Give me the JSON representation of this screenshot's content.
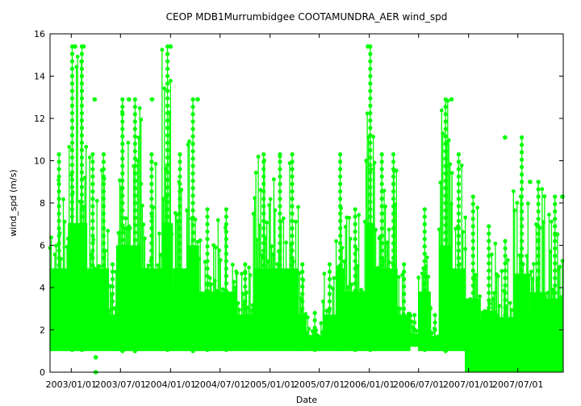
{
  "chart_data": {
    "type": "scatter",
    "title": "CEOP MDB1Murrumbidgee COOTAMUNDRA_AER  wind_spd",
    "xlabel": "Date",
    "ylabel": "wind_spd (m/s)",
    "x_range": [
      "2002-10-15",
      "2007-12-15"
    ],
    "ylim": [
      0,
      16
    ],
    "y_ticks": [
      0,
      2,
      4,
      6,
      8,
      10,
      12,
      14,
      16
    ],
    "x_ticks": [
      "2003/01/01",
      "2003/07/01",
      "2004/01/01",
      "2004/07/01",
      "2005/01/01",
      "2005/07/01",
      "2006/01/01",
      "2006/07/01",
      "2007/01/01",
      "2007/07/01"
    ],
    "grid": false,
    "legend": "none",
    "series_color": "#00ff00",
    "series": [
      {
        "columns": [
          "start_date",
          "end_date",
          "low",
          "high"
        ],
        "ranges": [
          [
            "2002-10-15",
            "2002-12-20",
            1.0,
            10.3
          ],
          [
            "2002-12-20",
            "2003-01-20",
            1.0,
            15.4
          ],
          [
            "2003-01-20",
            "2003-03-01",
            1.0,
            15.4
          ],
          [
            "2003-03-01",
            "2003-04-10",
            1.0,
            10.3
          ],
          [
            "2003-04-10",
            "2003-05-20",
            1.0,
            10.3
          ],
          [
            "2003-05-20",
            "2003-06-15",
            1.0,
            5.1
          ],
          [
            "2003-06-15",
            "2003-08-01",
            1.0,
            12.9
          ],
          [
            "2003-08-01",
            "2003-09-15",
            1.0,
            12.9
          ],
          [
            "2003-09-15",
            "2003-12-01",
            1.0,
            10.3
          ],
          [
            "2003-12-01",
            "2004-01-10",
            1.0,
            15.4
          ],
          [
            "2004-01-10",
            "2004-03-01",
            1.0,
            10.3
          ],
          [
            "2004-03-01",
            "2004-04-15",
            1.0,
            12.9
          ],
          [
            "2004-04-15",
            "2004-06-15",
            1.0,
            7.7
          ],
          [
            "2004-06-15",
            "2004-09-01",
            1.0,
            7.7
          ],
          [
            "2004-09-01",
            "2004-11-01",
            1.0,
            5.1
          ],
          [
            "2004-11-01",
            "2005-01-15",
            1.0,
            10.3
          ],
          [
            "2005-01-15",
            "2005-03-01",
            1.0,
            10.3
          ],
          [
            "2005-03-01",
            "2005-04-15",
            1.0,
            10.3
          ],
          [
            "2005-04-15",
            "2005-05-15",
            1.0,
            5.1
          ],
          [
            "2005-05-15",
            "2005-07-15",
            1.0,
            2.8
          ],
          [
            "2005-07-15",
            "2005-09-01",
            1.0,
            5.1
          ],
          [
            "2005-09-01",
            "2005-10-01",
            1.0,
            10.3
          ],
          [
            "2005-10-01",
            "2005-12-20",
            1.0,
            7.7
          ],
          [
            "2005-12-20",
            "2006-01-20",
            1.0,
            15.4
          ],
          [
            "2006-01-20",
            "2006-03-15",
            1.0,
            10.3
          ],
          [
            "2006-03-15",
            "2006-04-15",
            1.0,
            10.3
          ],
          [
            "2006-04-15",
            "2006-06-01",
            1.0,
            5.1
          ],
          [
            "2006-06-01",
            "2006-07-01",
            1.2,
            2.7
          ],
          [
            "2006-07-01",
            "2006-08-15",
            1.0,
            7.7
          ],
          [
            "2006-08-15",
            "2006-09-15",
            1.0,
            2.7
          ],
          [
            "2006-09-15",
            "2006-11-01",
            1.0,
            12.9
          ],
          [
            "2006-11-01",
            "2006-12-20",
            1.0,
            10.3
          ],
          [
            "2006-12-20",
            "2007-02-15",
            0.0,
            8.3
          ],
          [
            "2007-02-15",
            "2007-04-15",
            0.0,
            6.9
          ],
          [
            "2007-04-15",
            "2007-06-15",
            0.0,
            6.2
          ],
          [
            "2007-06-15",
            "2007-08-15",
            0.0,
            11.1
          ],
          [
            "2007-08-15",
            "2007-10-15",
            0.0,
            9.0
          ],
          [
            "2007-10-15",
            "2007-12-15",
            0.0,
            8.3
          ]
        ]
      }
    ],
    "points": [
      {
        "x": "2003-04-01",
        "y": 0.0
      },
      {
        "x": "2003-04-01",
        "y": 0.7
      },
      {
        "x": "2003-03-28",
        "y": 12.9
      },
      {
        "x": "2003-01-15",
        "y": 15.4
      },
      {
        "x": "2003-02-15",
        "y": 15.4
      },
      {
        "x": "2004-01-01",
        "y": 15.4
      },
      {
        "x": "2005-12-27",
        "y": 15.4
      },
      {
        "x": "2003-08-01",
        "y": 12.9
      },
      {
        "x": "2003-10-25",
        "y": 12.9
      },
      {
        "x": "2004-04-10",
        "y": 12.9
      },
      {
        "x": "2006-10-30",
        "y": 12.9
      },
      {
        "x": "2007-05-15",
        "y": 11.1
      },
      {
        "x": "2007-08-15",
        "y": 9.0
      },
      {
        "x": "2007-12-12",
        "y": 8.3
      }
    ]
  }
}
